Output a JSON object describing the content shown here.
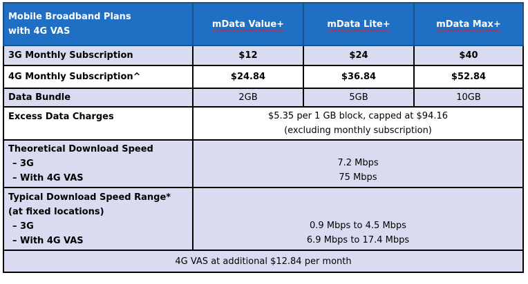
{
  "header": {
    "label_line1": "Mobile Broadband Plans",
    "label_line2": "with 4G VAS",
    "plans": [
      "mData Value+",
      "mData Lite+",
      "mData Max+"
    ]
  },
  "rows": {
    "sub3g": {
      "label": "3G Monthly Subscription",
      "values": [
        "$12",
        "$24",
        "$40"
      ]
    },
    "sub4g": {
      "label": "4G Monthly Subscription^",
      "values": [
        "$24.84",
        "$36.84",
        "$52.84"
      ]
    },
    "bundle": {
      "label": "Data Bundle",
      "values": [
        "2GB",
        "5GB",
        "10GB"
      ]
    },
    "excess": {
      "label": "Excess Data Charges",
      "line1": "$5.35 per 1 GB block, capped at $94.16",
      "line2": "(excluding monthly subscription)"
    },
    "theoretical": {
      "label": "Theoretical Download Speed",
      "sub1_label": "–  3G",
      "sub2_label": "–  With 4G VAS",
      "sub1_value": "7.2 Mbps",
      "sub2_value": "75 Mbps"
    },
    "typical": {
      "label_line1": "Typical Download Speed Range*",
      "label_line2": "(at fixed locations)",
      "sub1_label": "–  3G",
      "sub2_label": "–   With 4G VAS",
      "sub1_value": "0.9 Mbps to 4.5 Mbps",
      "sub2_value": "6.9 Mbps to 17.4 Mbps"
    }
  },
  "footer": "4G VAS at additional $12.84 per month",
  "colors": {
    "header_bg": "#1f6fc4",
    "shade_bg": "#d9dcf0"
  }
}
